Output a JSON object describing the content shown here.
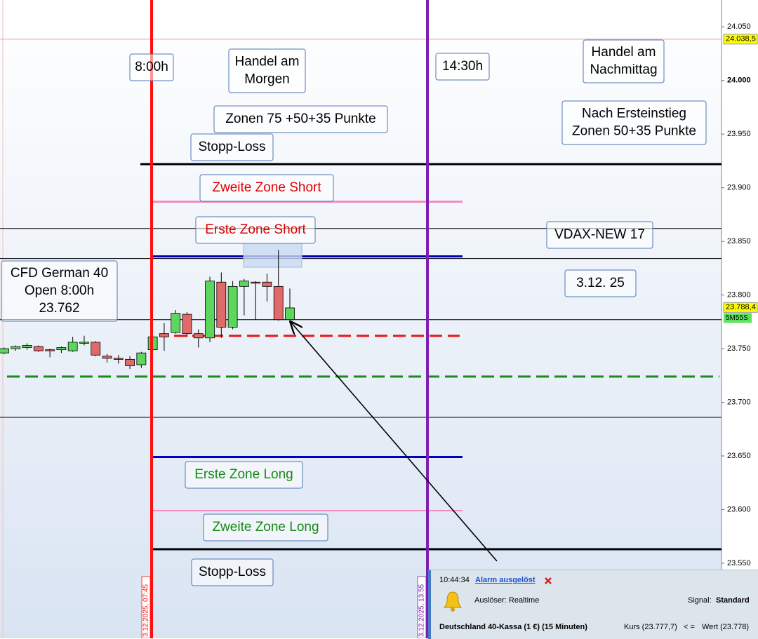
{
  "chart_data": {
    "type": "candlestick",
    "categories": [
      null,
      null,
      null,
      null,
      null,
      null,
      null,
      null,
      null,
      null,
      null,
      null,
      null,
      null,
      null,
      null,
      null,
      null,
      null,
      null,
      null,
      null,
      null,
      null,
      null,
      null
    ],
    "open": [
      23746,
      23750,
      23751,
      23752,
      23749,
      23749,
      23748,
      23755,
      23756,
      23743,
      23741,
      23740,
      23735,
      23749,
      23764,
      23765,
      23782,
      23764,
      23760,
      23812,
      23770,
      23808,
      23812,
      23812,
      23808,
      23777
    ],
    "high": [
      23751,
      23753,
      23755,
      23753,
      23750,
      23752,
      23761,
      23762,
      23757,
      23745,
      23744,
      23743,
      23747,
      23762,
      23774,
      23786,
      23784,
      23768,
      23817,
      23821,
      23813,
      23815,
      23813,
      23820,
      23842,
      23806
    ],
    "low": [
      23745,
      23748,
      23749,
      23747,
      23742,
      23746,
      23747,
      23753,
      23743,
      23737,
      23736,
      23731,
      23732,
      23747,
      23748,
      23764,
      23761,
      23751,
      23756,
      23760,
      23768,
      23781,
      23777,
      23794,
      23776,
      23776
    ],
    "close": [
      23750,
      23752,
      23753,
      23748,
      23748,
      23751,
      23756,
      23756,
      23744,
      23741,
      23740,
      23734,
      23746,
      23761,
      23761,
      23783,
      23764,
      23760,
      23813,
      23770,
      23808,
      23813,
      23811,
      23808,
      23777,
      23788
    ],
    "up_color": "#5cd65c",
    "down_color": "#e06a6a",
    "ylim": [
      23480,
      24075
    ],
    "yticks": [
      {
        "value": 23550,
        "label": "23.550"
      },
      {
        "value": 23600,
        "label": "23.600"
      },
      {
        "value": 23650,
        "label": "23.650"
      },
      {
        "value": 23700,
        "label": "23.700"
      },
      {
        "value": 23750,
        "label": "23.750"
      },
      {
        "value": 23800,
        "label": "23.800"
      },
      {
        "value": 23850,
        "label": "23.850"
      },
      {
        "value": 23900,
        "label": "23.900"
      },
      {
        "value": 23950,
        "label": "23.950"
      },
      {
        "value": 24000,
        "label": "24.000"
      },
      {
        "value": 24050,
        "label": "24.050"
      }
    ],
    "levels": [
      {
        "value": 24038.5,
        "color": "#f2a0a0",
        "style": "solid"
      },
      {
        "value": 23922,
        "color": "#000000",
        "style": "solid"
      },
      {
        "value": 23887,
        "color": "#f48cc4",
        "style": "solid"
      },
      {
        "value": 23862,
        "color": "#000000",
        "style": "solid"
      },
      {
        "value": 23836,
        "color": "#0000c0",
        "style": "solid"
      },
      {
        "value": 23834,
        "color": "#000000",
        "style": "solid"
      },
      {
        "value": 23777,
        "color": "#000000",
        "style": "solid"
      },
      {
        "value": 23762,
        "color": "#e81818",
        "style": "dashed"
      },
      {
        "value": 23724,
        "color": "#1e8a1e",
        "style": "dashed"
      },
      {
        "value": 23686,
        "color": "#000000",
        "style": "solid"
      },
      {
        "value": 23649,
        "color": "#0000c0",
        "style": "solid"
      },
      {
        "value": 23599,
        "color": "#f48cc4",
        "style": "solid"
      },
      {
        "value": 23563,
        "color": "#000000",
        "style": "solid"
      }
    ],
    "price_markers": [
      {
        "value": 24038.5,
        "label": "24.038,5",
        "color": "#ffff00"
      },
      {
        "value": 23788.4,
        "label": "23.788,4",
        "color": "#ffff00"
      }
    ],
    "countdown": "5M55S",
    "vlines": [
      {
        "label": "3.12.2025, 07:45",
        "color": "#ff1010"
      },
      {
        "label": "3.12.2025, 13:55",
        "color": "#7d1fb0"
      }
    ],
    "annotations": [
      {
        "lines": [
          "8:00h"
        ],
        "color": "#000000"
      },
      {
        "lines": [
          "Handel am",
          "Morgen"
        ],
        "color": "#000000"
      },
      {
        "lines": [
          "14:30h"
        ],
        "color": "#000000"
      },
      {
        "lines": [
          "Handel am",
          "Nachmittag"
        ],
        "color": "#000000"
      },
      {
        "lines": [
          "Zonen 75 +50+35 Punkte"
        ],
        "color": "#000000"
      },
      {
        "lines": [
          "Nach Ersteinstieg",
          "Zonen 50+35 Punkte"
        ],
        "color": "#000000"
      },
      {
        "lines": [
          "Stopp-Loss"
        ],
        "color": "#000000"
      },
      {
        "lines": [
          "Zweite Zone Short"
        ],
        "color": "#e00000"
      },
      {
        "lines": [
          "Erste Zone Short"
        ],
        "color": "#e00000"
      },
      {
        "lines": [
          "VDAX-NEW 17"
        ],
        "color": "#000000"
      },
      {
        "lines": [
          "CFD German 40",
          "Open 8:00h",
          "23.762"
        ],
        "color": "#000000"
      },
      {
        "lines": [
          "3.12. 25"
        ],
        "color": "#000000"
      },
      {
        "lines": [
          "Erste Zone Long"
        ],
        "color": "#138a13"
      },
      {
        "lines": [
          "Zweite Zone Long"
        ],
        "color": "#138a13"
      },
      {
        "lines": [
          "Stopp-Loss"
        ],
        "color": "#000000"
      }
    ]
  },
  "alarm": {
    "time": "10:44:34",
    "title": "Alarm ausgelöst",
    "trigger": "Auslöser: Realtime",
    "signal_label": "Signal:",
    "signal": "Standard",
    "instrument": "Deutschland 40-Kassa (1 €) (15 Minuten)",
    "price": "Kurs (23.777,7)",
    "operator": "< =",
    "value": "Wert (23.778)"
  }
}
